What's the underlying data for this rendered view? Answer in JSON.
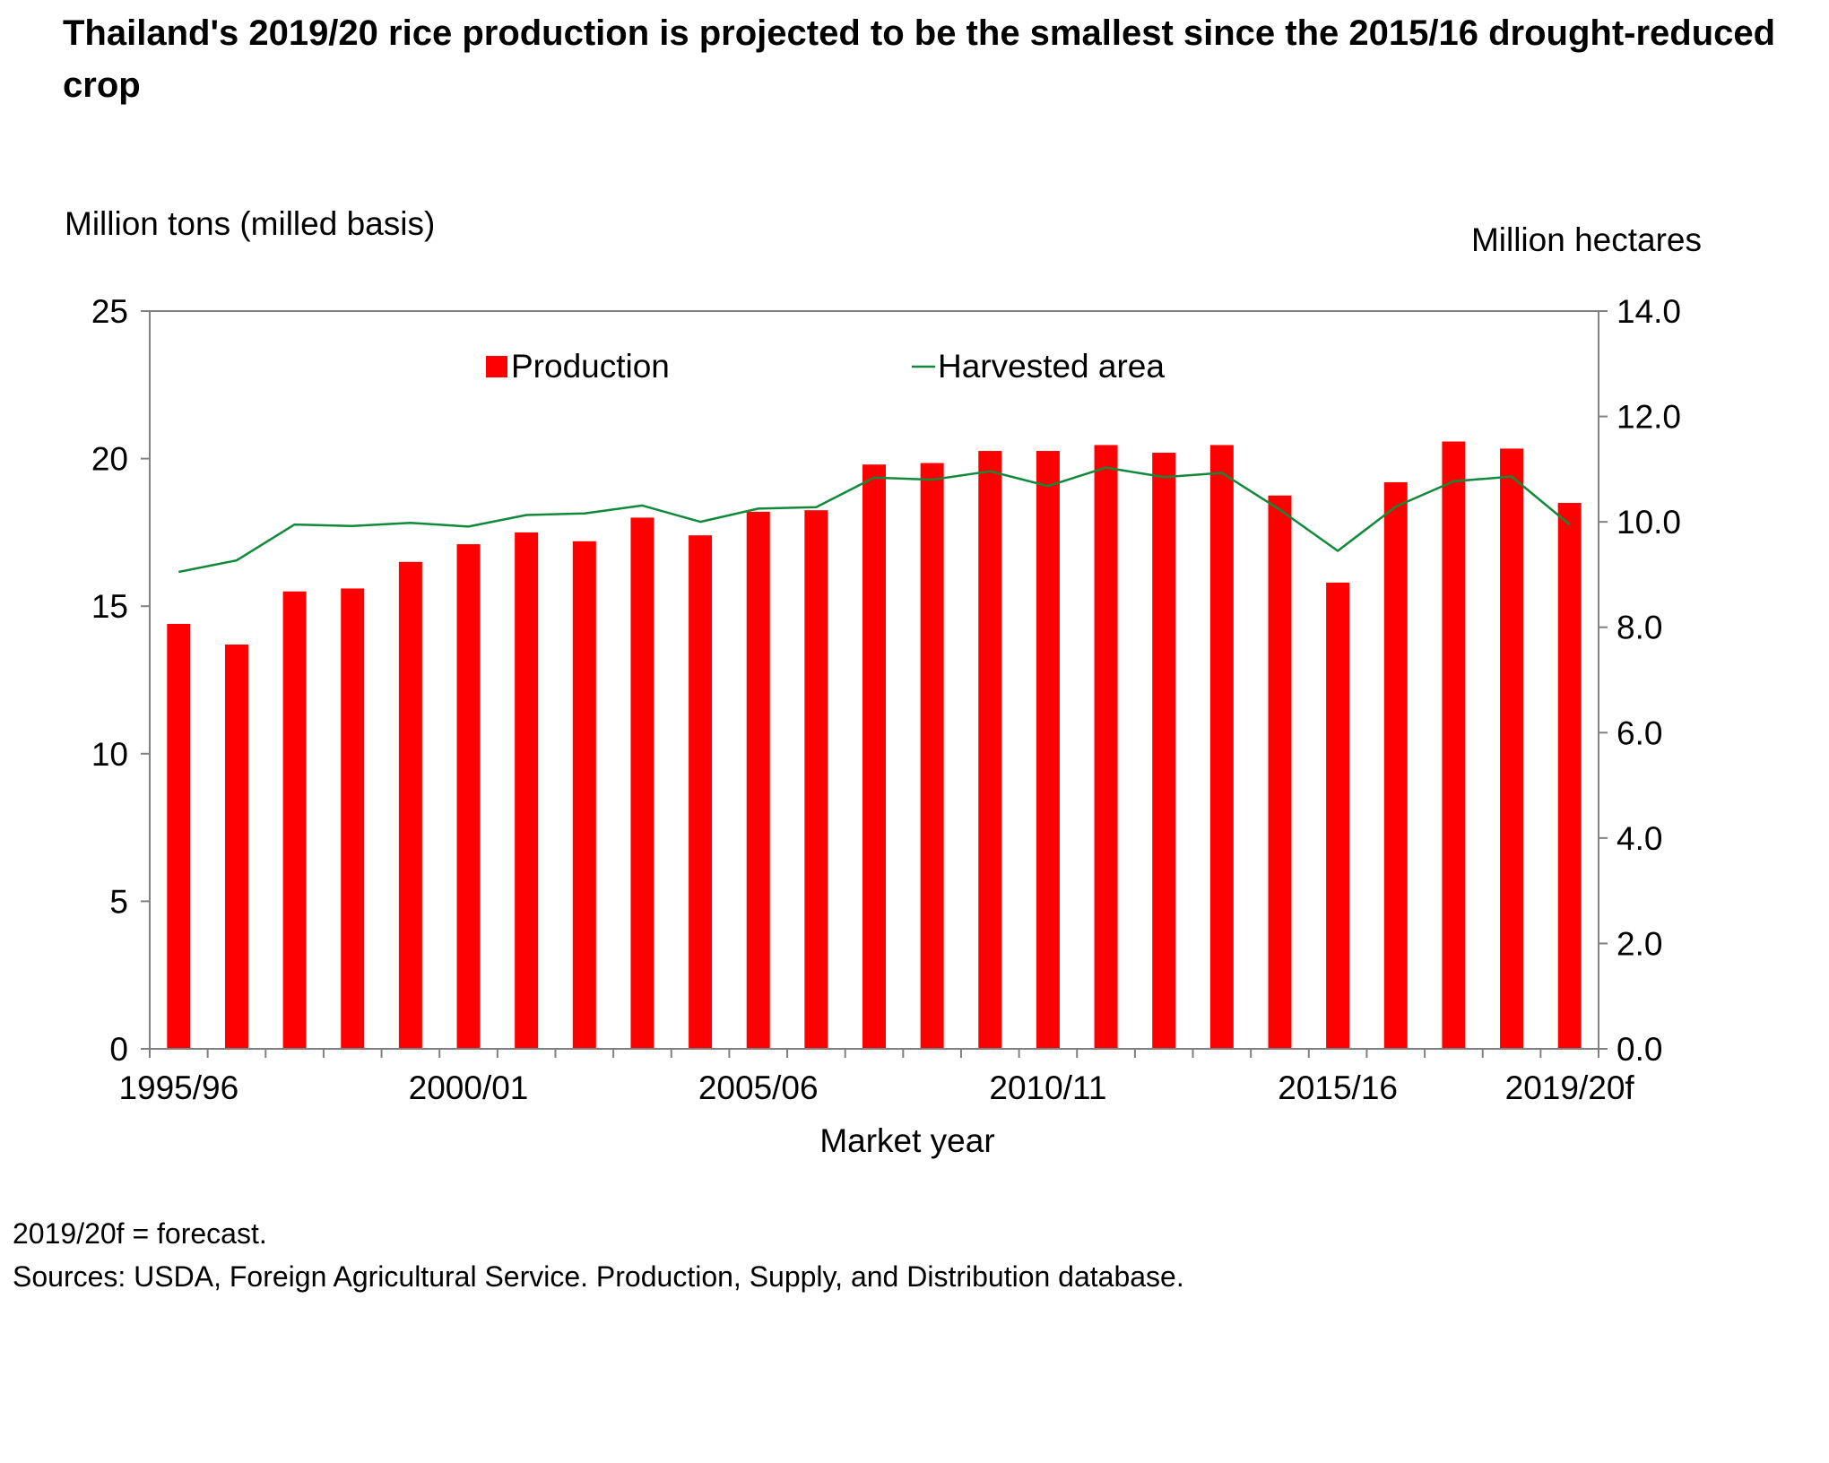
{
  "title": "Thailand's 2019/20 rice production is projected to be the smallest since the 2015/16 drought-reduced crop",
  "notes": {
    "forecast": "2019/20f = forecast.",
    "sources": "Sources: USDA, Foreign Agricultural Service. Production, Supply, and Distribution database."
  },
  "colors": {
    "production": "#ff0000",
    "area": "#108a3a",
    "axis": "#808080"
  },
  "chart_data": {
    "type": "bar",
    "title": "Thailand's 2019/20 rice production is projected to be the smallest since the 2015/16 drought-reduced crop",
    "xlabel": "Market year",
    "ylabel": "Million tons (milled basis)",
    "y2label": "Million hectares",
    "categories": [
      "1995/96",
      "1996/97",
      "1997/98",
      "1998/99",
      "1999/00",
      "2000/01",
      "2001/02",
      "2002/03",
      "2003/04",
      "2004/05",
      "2005/06",
      "2006/07",
      "2007/08",
      "2008/09",
      "2009/10",
      "2010/11",
      "2011/12",
      "2012/13",
      "2013/14",
      "2014/15",
      "2015/16",
      "2016/17",
      "2017/18",
      "2018/19",
      "2019/20f"
    ],
    "x_tick_labels": [
      "1995/96",
      "2000/01",
      "2005/06",
      "2010/11",
      "2015/16",
      "2019/20f"
    ],
    "x_tick_indices": [
      0,
      5,
      10,
      15,
      20,
      24
    ],
    "ylim": [
      0,
      25
    ],
    "yticks": [
      "0",
      "5",
      "10",
      "15",
      "20",
      "25"
    ],
    "y2lim": [
      0,
      14
    ],
    "y2ticks": [
      "0.0",
      "2.0",
      "4.0",
      "6.0",
      "8.0",
      "10.0",
      "12.0",
      "14.0"
    ],
    "legend_position": "top-center",
    "grid": false,
    "series": [
      {
        "name": "Production",
        "type": "bar",
        "axis": "left",
        "values": [
          14.4,
          13.7,
          15.5,
          15.6,
          16.5,
          17.1,
          17.5,
          17.2,
          18.0,
          17.4,
          18.2,
          18.25,
          19.8,
          19.85,
          20.26,
          20.26,
          20.46,
          20.2,
          20.46,
          18.75,
          15.8,
          19.2,
          20.58,
          20.34,
          18.5
        ]
      },
      {
        "name": "Harvested area",
        "type": "line",
        "axis": "right",
        "values": [
          9.05,
          9.27,
          9.95,
          9.92,
          9.98,
          9.91,
          10.13,
          10.16,
          10.31,
          10.0,
          10.25,
          10.28,
          10.84,
          10.8,
          10.96,
          10.68,
          11.03,
          10.85,
          10.93,
          10.23,
          9.45,
          10.29,
          10.77,
          10.86,
          9.95
        ]
      }
    ]
  }
}
